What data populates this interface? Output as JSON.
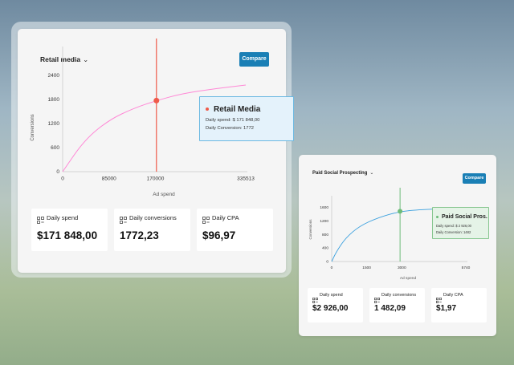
{
  "panels": {
    "retail": {
      "selector_label": "Retail media",
      "compare_label": "Compare",
      "tooltip": {
        "title": "Retail Media",
        "spend_line": "Daily spend:  $ 171 848,00",
        "conversion_line": "Daily Conversion: 1772"
      },
      "metrics": [
        {
          "label": "Daily spend",
          "value": "$171 848,00"
        },
        {
          "label": "Daily conversions",
          "value": "1772,23"
        },
        {
          "label": "Daily CPA",
          "value": "$96,97"
        }
      ]
    },
    "social": {
      "selector_label": "Paid Social Prospecting",
      "compare_label": "Compare",
      "tooltip": {
        "title": "Paid Social Pros.",
        "spend_line": "Daily spend:  $ 2 926,00",
        "conversion_line": "Daily Conversion: 1482"
      },
      "metrics": [
        {
          "label": "Daily spend",
          "value": "$2 926,00"
        },
        {
          "label": "Daily conversions",
          "value": "1 482,09"
        },
        {
          "label": "Daily CPA",
          "value": "$1,97"
        }
      ]
    }
  },
  "chart_data": [
    {
      "type": "line",
      "xlabel": "Ad spend",
      "ylabel": "Conversions",
      "x_ticks": [
        "0",
        "85000",
        "170000",
        "335513"
      ],
      "y_ticks": [
        "0",
        "600",
        "1200",
        "1800",
        "2400"
      ],
      "xlim": [
        0,
        335513
      ],
      "ylim": [
        0,
        3000
      ],
      "series": [
        {
          "color": "#ff88d6",
          "x": [
            0,
            40000,
            85000,
            130000,
            171848,
            220000,
            280000,
            335513
          ],
          "y": [
            0,
            790,
            1290,
            1580,
            1772,
            1950,
            2070,
            2160
          ]
        }
      ],
      "highlight": {
        "x": 171848,
        "y": 1772,
        "color": "#ef5a4a"
      }
    },
    {
      "type": "line",
      "xlabel": "Ad spend",
      "ylabel": "Conversions",
      "x_ticks": [
        "0",
        "1500",
        "3000",
        "5740"
      ],
      "y_ticks": [
        "0",
        "400",
        "800",
        "1200",
        "1600"
      ],
      "xlim": [
        0,
        5740
      ],
      "ylim": [
        0,
        1800
      ],
      "series": [
        {
          "color": "#3aa0de",
          "x": [
            0,
            200,
            600,
            1200,
            2000,
            2926,
            4000,
            5740
          ],
          "y": [
            0,
            290,
            700,
            1050,
            1300,
            1482,
            1540,
            1590
          ]
        }
      ],
      "highlight": {
        "x": 2926,
        "y": 1482,
        "color": "#6dbb79"
      }
    }
  ]
}
